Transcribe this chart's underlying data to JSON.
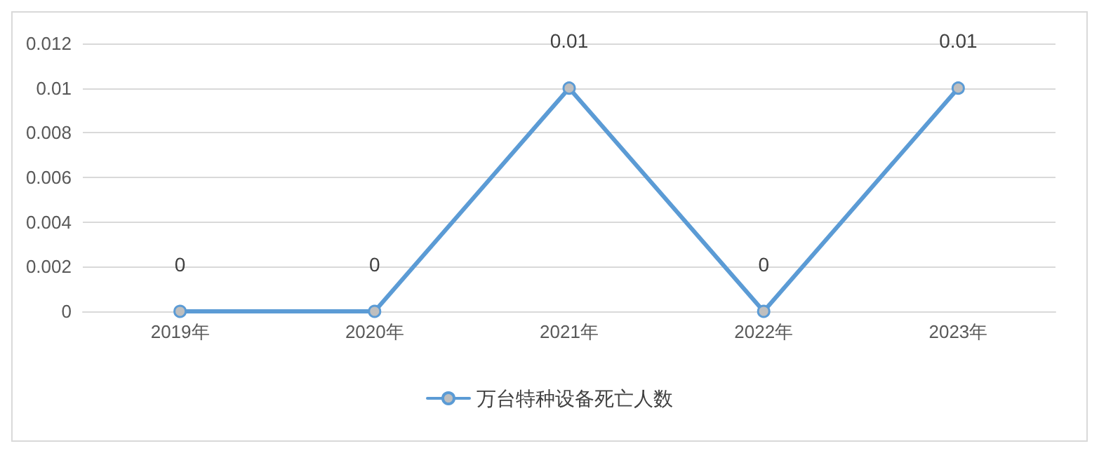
{
  "chart_data": {
    "type": "line",
    "categories": [
      "2019年",
      "2020年",
      "2021年",
      "2022年",
      "2023年"
    ],
    "series": [
      {
        "name": "万台特种设备死亡人数",
        "color": "#5b9bd5",
        "values": [
          0,
          0,
          0.01,
          0,
          0.01
        ]
      }
    ],
    "ylim": [
      0,
      0.012
    ],
    "yticks": [
      0,
      0.002,
      0.004,
      0.006,
      0.008,
      0.01,
      0.012
    ],
    "grid": "y",
    "legend": "bottom",
    "marker": "circle",
    "line_style": "solid",
    "data_labels": true
  }
}
